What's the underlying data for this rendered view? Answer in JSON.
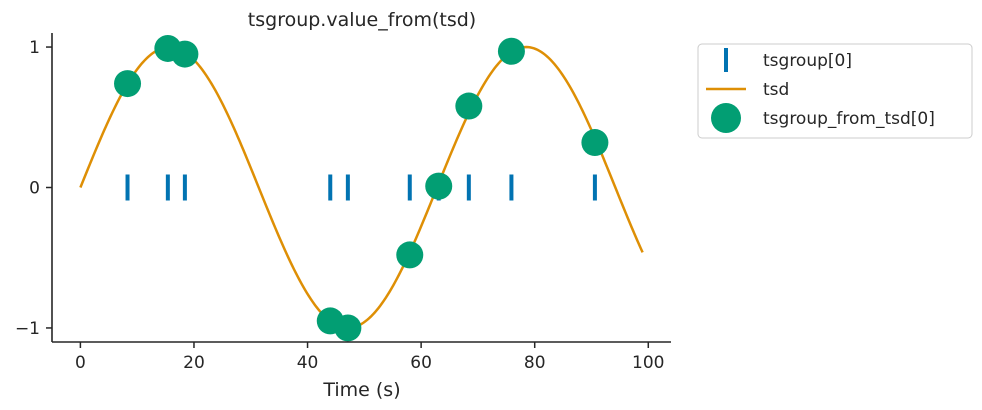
{
  "chart_data": {
    "type": "line",
    "title": "tsgroup.value_from(tsd)",
    "xlabel": "Time (s)",
    "ylabel": "",
    "xlim": [
      -5,
      104
    ],
    "ylim": [
      -1.1,
      1.1
    ],
    "xticks": [
      0,
      20,
      40,
      60,
      80,
      100
    ],
    "xtick_labels": [
      "0",
      "20",
      "40",
      "60",
      "80",
      "100"
    ],
    "yticks": [
      -1,
      0,
      1
    ],
    "ytick_labels": [
      "−1",
      "0",
      "1"
    ],
    "grid": false,
    "legend_position": "outside-top-right",
    "series": [
      {
        "name": "tsgroup[0]",
        "kind": "event-ticks",
        "color": "#0173b2",
        "x": [
          8.3,
          15.4,
          18.4,
          44.0,
          47.1,
          58.0,
          63.1,
          68.4,
          75.9,
          90.6
        ],
        "y": [
          0,
          0,
          0,
          0,
          0,
          0,
          0,
          0,
          0,
          0
        ]
      },
      {
        "name": "tsd",
        "kind": "line",
        "color": "#de8f05",
        "function": "sin",
        "period": 62.8,
        "x_start": 0,
        "x_end": 99
      },
      {
        "name": "tsgroup_from_tsd[0]",
        "kind": "scatter",
        "color": "#029e73",
        "x": [
          8.3,
          15.4,
          18.4,
          44.0,
          47.1,
          58.0,
          63.1,
          68.4,
          75.9,
          90.6
        ],
        "y": [
          0.74,
          0.99,
          0.95,
          -0.95,
          -1.0,
          -0.48,
          0.01,
          0.58,
          0.97,
          0.32
        ]
      }
    ]
  }
}
